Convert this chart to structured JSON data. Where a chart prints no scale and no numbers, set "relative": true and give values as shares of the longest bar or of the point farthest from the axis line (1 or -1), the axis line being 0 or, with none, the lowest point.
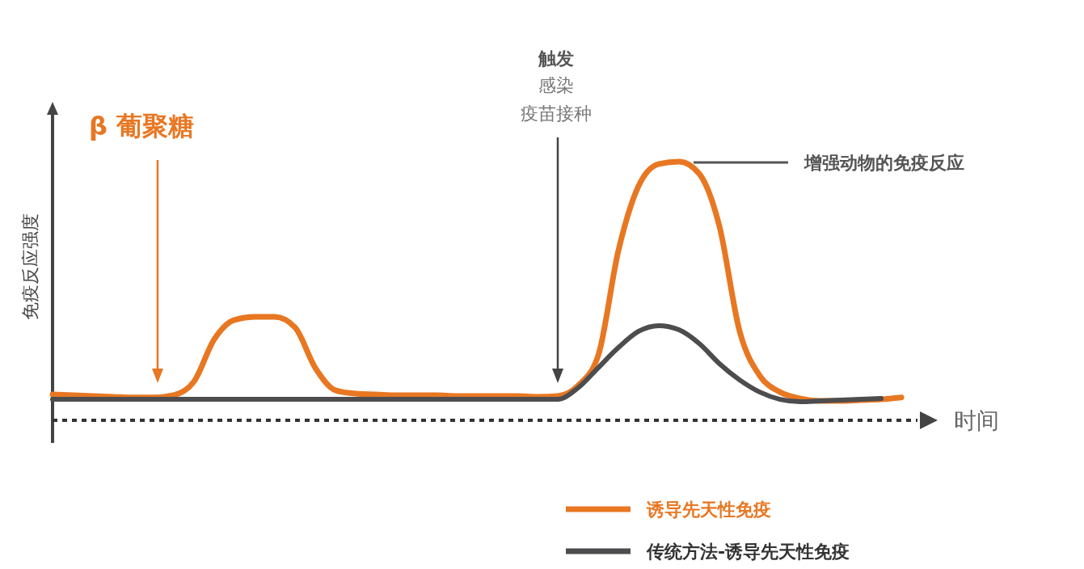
{
  "chart_data": {
    "type": "line",
    "relative": true,
    "ylabel": "免疫反应强度",
    "xlabel": "时间",
    "legend": "bottom",
    "categories": [
      null,
      null,
      null,
      null,
      null,
      null,
      null,
      null,
      null,
      null,
      null,
      null,
      null,
      null,
      null,
      null,
      null,
      null,
      null,
      null,
      null,
      null,
      null,
      null,
      null,
      null,
      null,
      null,
      null,
      null,
      null,
      null,
      null,
      null,
      null,
      null,
      null,
      null,
      null,
      null,
      null,
      null,
      null
    ],
    "annotations": [
      "β 葡聚糖",
      "触发",
      "感染",
      "疫苗接种",
      "增强动物的免疫反应"
    ],
    "series": [
      {
        "name": "诱导先天性免疫",
        "color": "#e87722",
        "values": [
          0.1,
          0.097,
          0.094,
          0.091,
          0.088,
          0.088,
          0.097,
          0.15,
          0.313,
          0.388,
          0.4,
          0.4,
          0.359,
          0.203,
          0.116,
          0.103,
          0.1,
          0.097,
          0.097,
          0.097,
          0.094,
          0.094,
          0.094,
          0.094,
          0.091,
          0.094,
          0.134,
          0.25,
          0.656,
          0.906,
          0.991,
          1,
          0.953,
          0.75,
          0.344,
          0.172,
          0.109,
          0.084,
          0.075,
          0.075,
          0.078,
          0.081,
          0.088
        ]
      },
      {
        "name": "传统方法-诱导先天性免疫",
        "color": "#4d4d4f",
        "values": [
          0.081,
          0.081,
          0.081,
          0.081,
          0.081,
          0.081,
          0.081,
          0.081,
          0.081,
          0.081,
          0.081,
          0.081,
          0.081,
          0.081,
          0.081,
          0.081,
          0.081,
          0.081,
          0.081,
          0.081,
          0.081,
          0.081,
          0.081,
          0.081,
          0.081,
          0.081,
          0.125,
          0.203,
          0.281,
          0.344,
          0.366,
          0.35,
          0.297,
          0.219,
          0.156,
          0.109,
          0.081,
          0.072,
          0.075,
          0.078,
          0.081,
          0.084,
          null
        ]
      }
    ]
  }
}
